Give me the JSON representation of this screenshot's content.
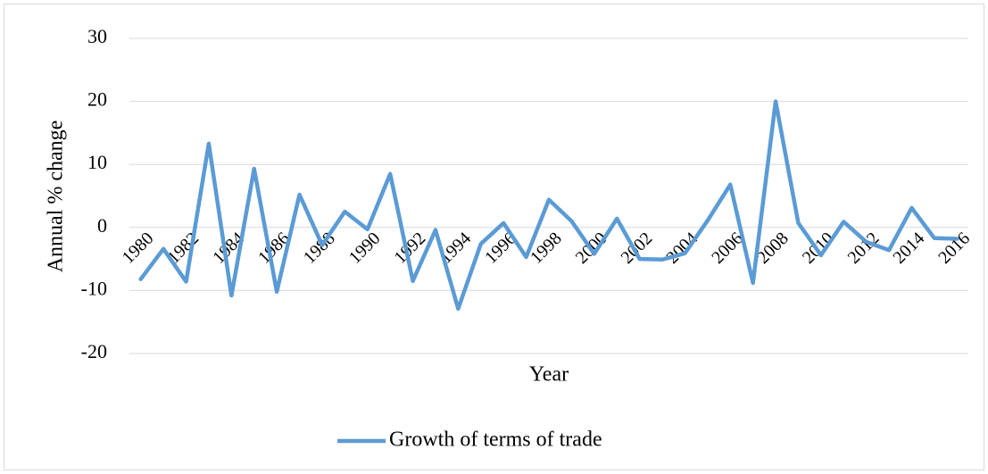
{
  "chart_data": {
    "type": "line",
    "x_label": "Year",
    "y_label": "Annual % change",
    "categories": [
      "1980",
      null,
      "1982",
      null,
      "1984",
      null,
      "1986",
      null,
      "1988",
      null,
      "1990",
      null,
      "1992",
      null,
      "1994",
      null,
      "1996",
      null,
      "1998",
      null,
      "2000",
      null,
      "2002",
      null,
      "2004",
      null,
      "2006",
      null,
      "2008",
      null,
      "2010",
      null,
      "2012",
      null,
      "2014",
      null,
      "2016"
    ],
    "series": [
      {
        "name": "Growth of terms of trade",
        "color": "#5b9bd5",
        "values": [
          -8.2,
          -3.4,
          -8.6,
          13.3,
          -10.8,
          9.3,
          -10.2,
          5.2,
          -2.8,
          2.5,
          -0.3,
          8.5,
          -8.5,
          -0.4,
          -12.9,
          -2.6,
          0.7,
          -4.7,
          4.4,
          1.0,
          -4.2,
          1.4,
          -5.0,
          -5.1,
          -4.1,
          1.1,
          6.8,
          -8.8,
          20.0,
          0.7,
          -4.4,
          0.9,
          -2.3,
          -3.6,
          3.1,
          -1.7,
          -1.8
        ]
      }
    ],
    "ylim": [
      -20,
      30
    ],
    "yticks": [
      -20,
      -10,
      0,
      10,
      20,
      30
    ],
    "grid": true,
    "legend": "bottom"
  }
}
